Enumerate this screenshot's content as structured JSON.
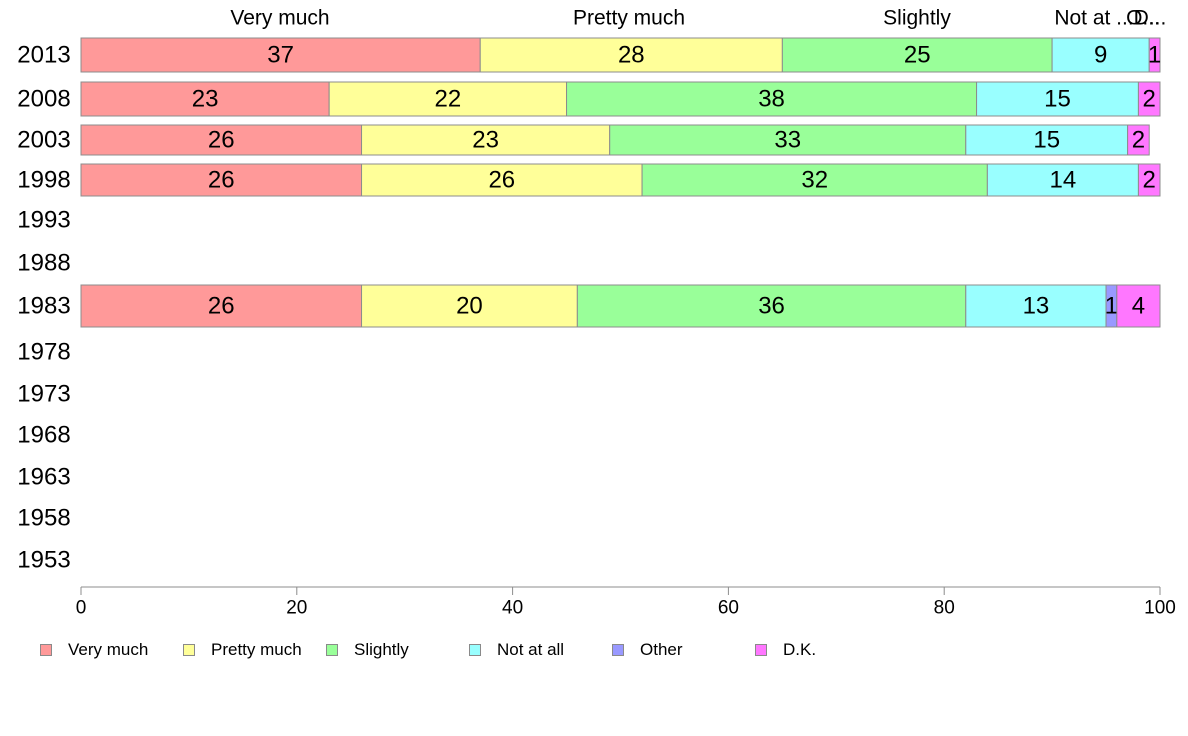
{
  "chart_data": {
    "type": "bar",
    "orientation": "horizontal",
    "stacked": true,
    "categories": [
      "2013",
      "2008",
      "2003",
      "1998",
      "1993",
      "1988",
      "1983",
      "1978",
      "1973",
      "1968",
      "1963",
      "1958",
      "1953"
    ],
    "series": [
      {
        "name": "Very much",
        "color": "#ff9999",
        "values": [
          37,
          23,
          26,
          26,
          null,
          null,
          26,
          null,
          null,
          null,
          null,
          null,
          null
        ],
        "labels": [
          "37",
          "23",
          "26",
          "26",
          "",
          "",
          "26",
          "",
          "",
          "",
          "",
          "",
          ""
        ]
      },
      {
        "name": "Pretty much",
        "color": "#ffff99",
        "values": [
          28,
          22,
          23,
          26,
          null,
          null,
          20,
          null,
          null,
          null,
          null,
          null,
          null
        ],
        "labels": [
          "28",
          "22",
          "23",
          "26",
          "",
          "",
          "20",
          "",
          "",
          "",
          "",
          "",
          ""
        ]
      },
      {
        "name": "Slightly",
        "color": "#99ff99",
        "values": [
          25,
          38,
          33,
          32,
          null,
          null,
          36,
          null,
          null,
          null,
          null,
          null,
          null
        ],
        "labels": [
          "25",
          "38",
          "33",
          "32",
          "",
          "",
          "36",
          "",
          "",
          "",
          "",
          "",
          ""
        ]
      },
      {
        "name": "Not at all",
        "color": "#99ffff",
        "values": [
          9,
          15,
          15,
          14,
          null,
          null,
          13,
          null,
          null,
          null,
          null,
          null,
          null
        ],
        "labels": [
          "9",
          "15",
          "15",
          "14",
          "",
          "",
          "13",
          "",
          "",
          "",
          "",
          "",
          ""
        ]
      },
      {
        "name": "Other",
        "color": "#9999ff",
        "values": [
          0,
          0,
          0,
          0,
          null,
          null,
          1,
          null,
          null,
          null,
          null,
          null,
          null
        ],
        "labels": [
          "",
          "",
          "",
          "",
          "",
          "",
          "1",
          "",
          "",
          "",
          "",
          "",
          ""
        ]
      },
      {
        "name": "D.K.",
        "color": "#ff77ff",
        "values": [
          1,
          2,
          2,
          2,
          null,
          null,
          4,
          null,
          null,
          null,
          null,
          null,
          null
        ],
        "labels": [
          "1",
          "2",
          "2",
          "2",
          "",
          "",
          "4",
          "",
          "",
          "",
          "",
          "",
          ""
        ]
      }
    ],
    "top_labels": [
      "Very much",
      "Pretty much",
      "Slightly",
      "Not at ...",
      "O...",
      "D..."
    ],
    "xlim": [
      0,
      100
    ],
    "xticks": [
      "0",
      "20",
      "40",
      "60",
      "80",
      "100"
    ],
    "grid": false,
    "legend_position": "bottom"
  },
  "legend": [
    {
      "label": "Very much",
      "color": "#ff9999"
    },
    {
      "label": "Pretty much",
      "color": "#ffff99"
    },
    {
      "label": "Slightly",
      "color": "#99ff99"
    },
    {
      "label": "Not at all",
      "color": "#99ffff"
    },
    {
      "label": "Other",
      "color": "#9999ff"
    },
    {
      "label": "D.K.",
      "color": "#ff77ff"
    }
  ]
}
